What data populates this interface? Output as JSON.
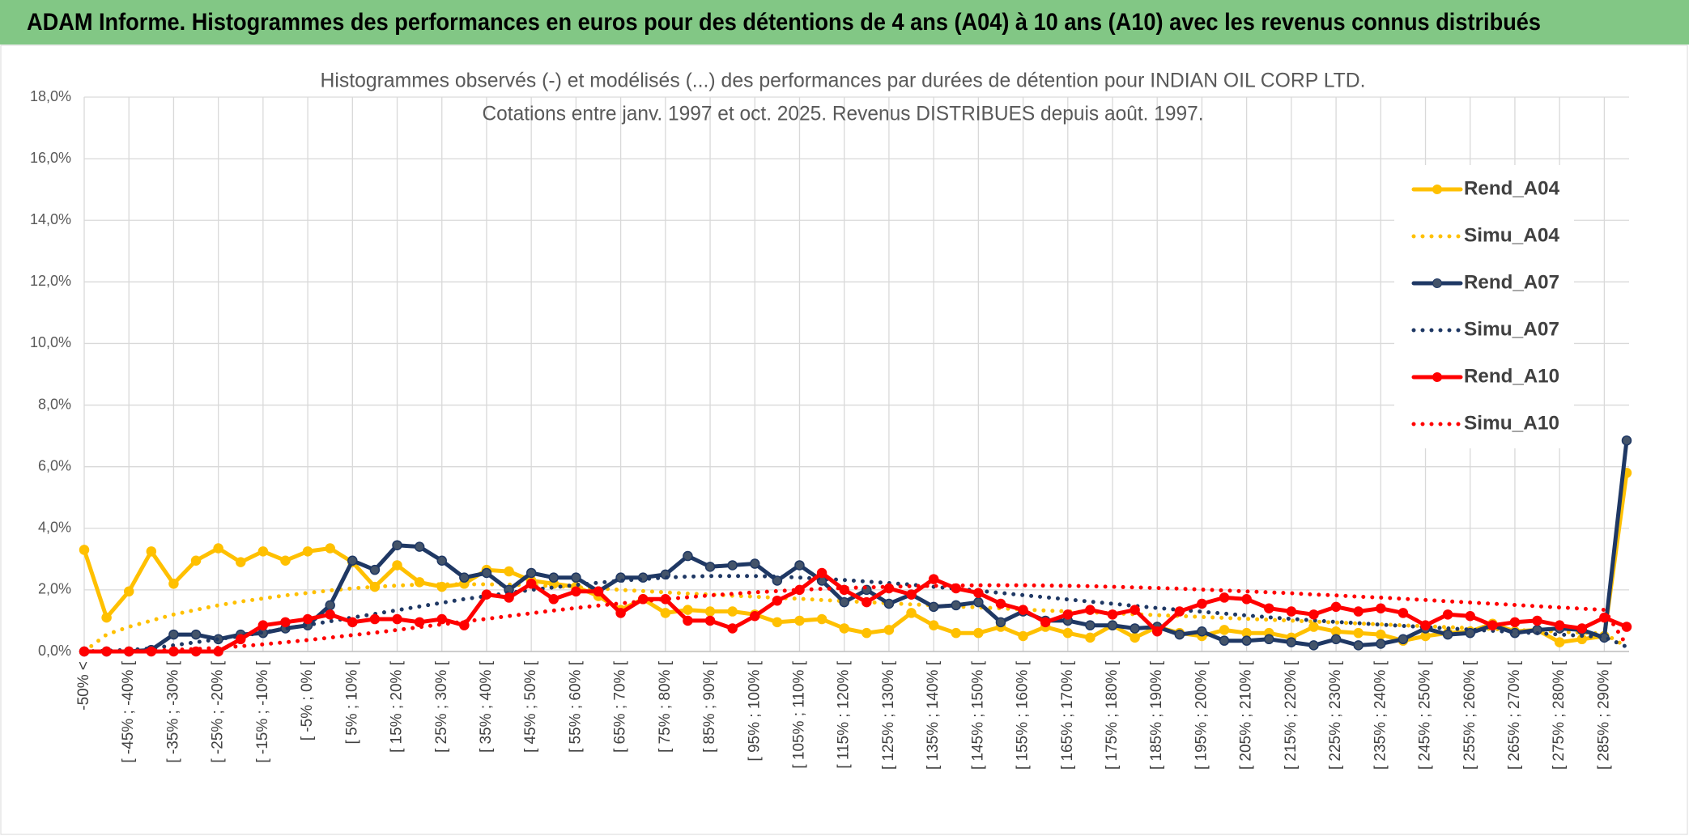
{
  "header": "ADAM Informe. Histogrammes des performances en euros pour des détentions de 4 ans (A04) à 10 ans (A10) avec les revenus connus distribués",
  "chart_data": {
    "type": "line",
    "title": "Histogrammes observés (-) et modélisés (...) des performances par durées de détention pour INDIAN OIL CORP LTD.",
    "subtitle": "Cotations entre janv. 1997 et oct. 2025. Revenus DISTRIBUES depuis août. 1997.",
    "categories": [
      "-50% <",
      null,
      "[ -45% ; -40% [",
      null,
      "[ -35% ; -30% [",
      null,
      "[ -25% ; -20% [",
      null,
      "[ -15% ; -10% [",
      null,
      "[ -5% ; 0% [",
      null,
      "[ 5% ; 10% [",
      null,
      "[ 15% ; 20% [",
      null,
      "[ 25% ; 30% [",
      null,
      "[ 35% ; 40% [",
      null,
      "[ 45% ; 50% [",
      null,
      "[ 55% ; 60% [",
      null,
      "[ 65% ; 70% [",
      null,
      "[ 75% ; 80% [",
      null,
      "[ 85% ; 90% [",
      null,
      "[ 95% ; 100% [",
      null,
      "[ 105% ; 110% [",
      null,
      "[ 115% ; 120% [",
      null,
      "[ 125% ; 130% [",
      null,
      "[ 135% ; 140% [",
      null,
      "[ 145% ; 150% [",
      null,
      "[ 155% ; 160% [",
      null,
      "[ 165% ; 170% [",
      null,
      "[ 175% ; 180% [",
      null,
      "[ 185% ; 190% [",
      null,
      "[ 195% ; 200% [",
      null,
      "[ 205% ; 210% [",
      null,
      "[ 215% ; 220% [",
      null,
      "[ 225% ; 230% [",
      null,
      "[ 235% ; 240% [",
      null,
      "[ 245% ; 250% [",
      null,
      "[ 255% ; 260% [",
      null,
      "[ 265% ; 270% [",
      null,
      "[ 275% ; 280% [",
      null,
      "[ 285% ; 290% [",
      null
    ],
    "series": [
      {
        "name": "Rend_A04",
        "color": "#FFC000",
        "style": "solid",
        "markers": true,
        "values": [
          3.3,
          1.1,
          1.95,
          3.25,
          2.2,
          2.95,
          3.35,
          2.9,
          3.25,
          2.95,
          3.25,
          3.35,
          2.9,
          2.1,
          2.8,
          2.25,
          2.1,
          2.2,
          2.65,
          2.6,
          2.3,
          2.2,
          2.1,
          1.8,
          1.35,
          1.7,
          1.25,
          1.35,
          1.3,
          1.3,
          1.2,
          0.95,
          1.0,
          1.05,
          0.75,
          0.6,
          0.7,
          1.25,
          0.85,
          0.6,
          0.6,
          0.8,
          0.5,
          0.8,
          0.6,
          0.45,
          0.85,
          0.45,
          0.8,
          0.6,
          0.5,
          0.7,
          0.6,
          0.6,
          0.45,
          0.8,
          0.65,
          0.6,
          0.55,
          0.35,
          0.5,
          0.6,
          0.65,
          0.9,
          0.65,
          0.7,
          0.3,
          0.4,
          0.5,
          5.8
        ]
      },
      {
        "name": "Simu_A04",
        "color": "#FFC000",
        "style": "dotted",
        "markers": false,
        "values": [
          0,
          0.55,
          0.8,
          1.0,
          1.2,
          1.35,
          1.5,
          1.62,
          1.72,
          1.82,
          1.9,
          1.98,
          2.05,
          2.1,
          2.14,
          2.17,
          2.18,
          2.18,
          2.18,
          2.17,
          2.15,
          2.12,
          2.09,
          2.05,
          2.0,
          1.96,
          1.92,
          1.88,
          1.85,
          1.81,
          1.78,
          1.74,
          1.71,
          1.67,
          1.64,
          1.6,
          1.57,
          1.53,
          1.5,
          1.46,
          1.43,
          1.4,
          1.36,
          1.33,
          1.3,
          1.27,
          1.24,
          1.21,
          1.18,
          1.15,
          1.12,
          1.09,
          1.06,
          1.03,
          1.0,
          0.97,
          0.94,
          0.91,
          0.88,
          0.85,
          0.82,
          0.79,
          0.76,
          0.73,
          0.7,
          0.67,
          0.64,
          0.61,
          0.58,
          0.15
        ]
      },
      {
        "name": "Rend_A07",
        "color": "#1F3864",
        "style": "solid",
        "markers": true,
        "values": [
          0,
          0,
          0,
          0.05,
          0.55,
          0.55,
          0.4,
          0.55,
          0.6,
          0.75,
          0.85,
          1.5,
          2.95,
          2.65,
          3.45,
          3.4,
          2.95,
          2.4,
          2.55,
          2.0,
          2.55,
          2.4,
          2.4,
          1.95,
          2.4,
          2.4,
          2.5,
          3.1,
          2.75,
          2.8,
          2.85,
          2.3,
          2.8,
          2.3,
          1.6,
          2.0,
          1.55,
          1.85,
          1.45,
          1.5,
          1.6,
          0.95,
          1.3,
          1.0,
          1.0,
          0.85,
          0.85,
          0.75,
          0.8,
          0.55,
          0.65,
          0.35,
          0.35,
          0.4,
          0.3,
          0.2,
          0.4,
          0.2,
          0.25,
          0.4,
          0.75,
          0.55,
          0.6,
          0.85,
          0.6,
          0.7,
          0.75,
          0.7,
          0.45,
          6.85
        ]
      },
      {
        "name": "Simu_A07",
        "color": "#1F3864",
        "style": "dotted",
        "markers": false,
        "values": [
          0,
          0.02,
          0.05,
          0.1,
          0.2,
          0.3,
          0.4,
          0.5,
          0.62,
          0.74,
          0.86,
          0.98,
          1.1,
          1.22,
          1.34,
          1.46,
          1.58,
          1.7,
          1.8,
          1.9,
          2.0,
          2.08,
          2.16,
          2.23,
          2.3,
          2.35,
          2.4,
          2.43,
          2.45,
          2.45,
          2.45,
          2.43,
          2.4,
          2.36,
          2.32,
          2.27,
          2.22,
          2.17,
          2.1,
          2.04,
          1.97,
          1.9,
          1.83,
          1.76,
          1.69,
          1.62,
          1.55,
          1.48,
          1.41,
          1.35,
          1.29,
          1.23,
          1.17,
          1.11,
          1.06,
          1.01,
          0.96,
          0.92,
          0.87,
          0.83,
          0.79,
          0.75,
          0.71,
          0.67,
          0.63,
          0.59,
          0.55,
          0.51,
          0.47,
          0.15
        ]
      },
      {
        "name": "Rend_A10",
        "color": "#FF0000",
        "style": "solid",
        "markers": true,
        "values": [
          0,
          0,
          0,
          0,
          0,
          0,
          0,
          0.4,
          0.85,
          0.95,
          1.05,
          1.2,
          0.95,
          1.05,
          1.05,
          0.95,
          1.05,
          0.85,
          1.85,
          1.75,
          2.2,
          1.7,
          1.95,
          1.95,
          1.25,
          1.7,
          1.7,
          1.0,
          1.0,
          0.75,
          1.15,
          1.65,
          2.0,
          2.55,
          2.0,
          1.6,
          2.05,
          1.85,
          2.35,
          2.05,
          1.9,
          1.55,
          1.35,
          0.95,
          1.2,
          1.35,
          1.2,
          1.35,
          0.65,
          1.3,
          1.55,
          1.75,
          1.7,
          1.4,
          1.3,
          1.2,
          1.45,
          1.3,
          1.4,
          1.25,
          0.85,
          1.2,
          1.15,
          0.85,
          0.95,
          1.0,
          0.85,
          0.75,
          1.1,
          0.8
        ]
      },
      {
        "name": "Simu_A10",
        "color": "#FF0000",
        "style": "dotted",
        "markers": false,
        "values": [
          0,
          0,
          0.01,
          0.03,
          0.05,
          0.08,
          0.12,
          0.17,
          0.23,
          0.3,
          0.37,
          0.45,
          0.53,
          0.61,
          0.7,
          0.79,
          0.88,
          0.97,
          1.06,
          1.15,
          1.24,
          1.33,
          1.41,
          1.49,
          1.56,
          1.63,
          1.7,
          1.76,
          1.82,
          1.87,
          1.92,
          1.96,
          2.0,
          2.03,
          2.06,
          2.08,
          2.1,
          2.12,
          2.13,
          2.14,
          2.15,
          2.15,
          2.15,
          2.14,
          2.13,
          2.12,
          2.1,
          2.08,
          2.06,
          2.04,
          2.01,
          1.98,
          1.95,
          1.92,
          1.89,
          1.85,
          1.82,
          1.78,
          1.75,
          1.71,
          1.67,
          1.63,
          1.59,
          1.55,
          1.51,
          1.47,
          1.43,
          1.39,
          1.35,
          0.2
        ]
      }
    ],
    "ylim": [
      0,
      18
    ],
    "yticks": [
      {
        "value": 0,
        "label": "0,0%"
      },
      {
        "value": 2,
        "label": "2,0%"
      },
      {
        "value": 4,
        "label": "4,0%"
      },
      {
        "value": 6,
        "label": "6,0%"
      },
      {
        "value": 8,
        "label": "8,0%"
      },
      {
        "value": 10,
        "label": "10,0%"
      },
      {
        "value": 12,
        "label": "12,0%"
      },
      {
        "value": 14,
        "label": "14,0%"
      },
      {
        "value": 16,
        "label": "16,0%"
      },
      {
        "value": 18,
        "label": "18,0%"
      }
    ],
    "grid": true,
    "legend": "top-right"
  }
}
